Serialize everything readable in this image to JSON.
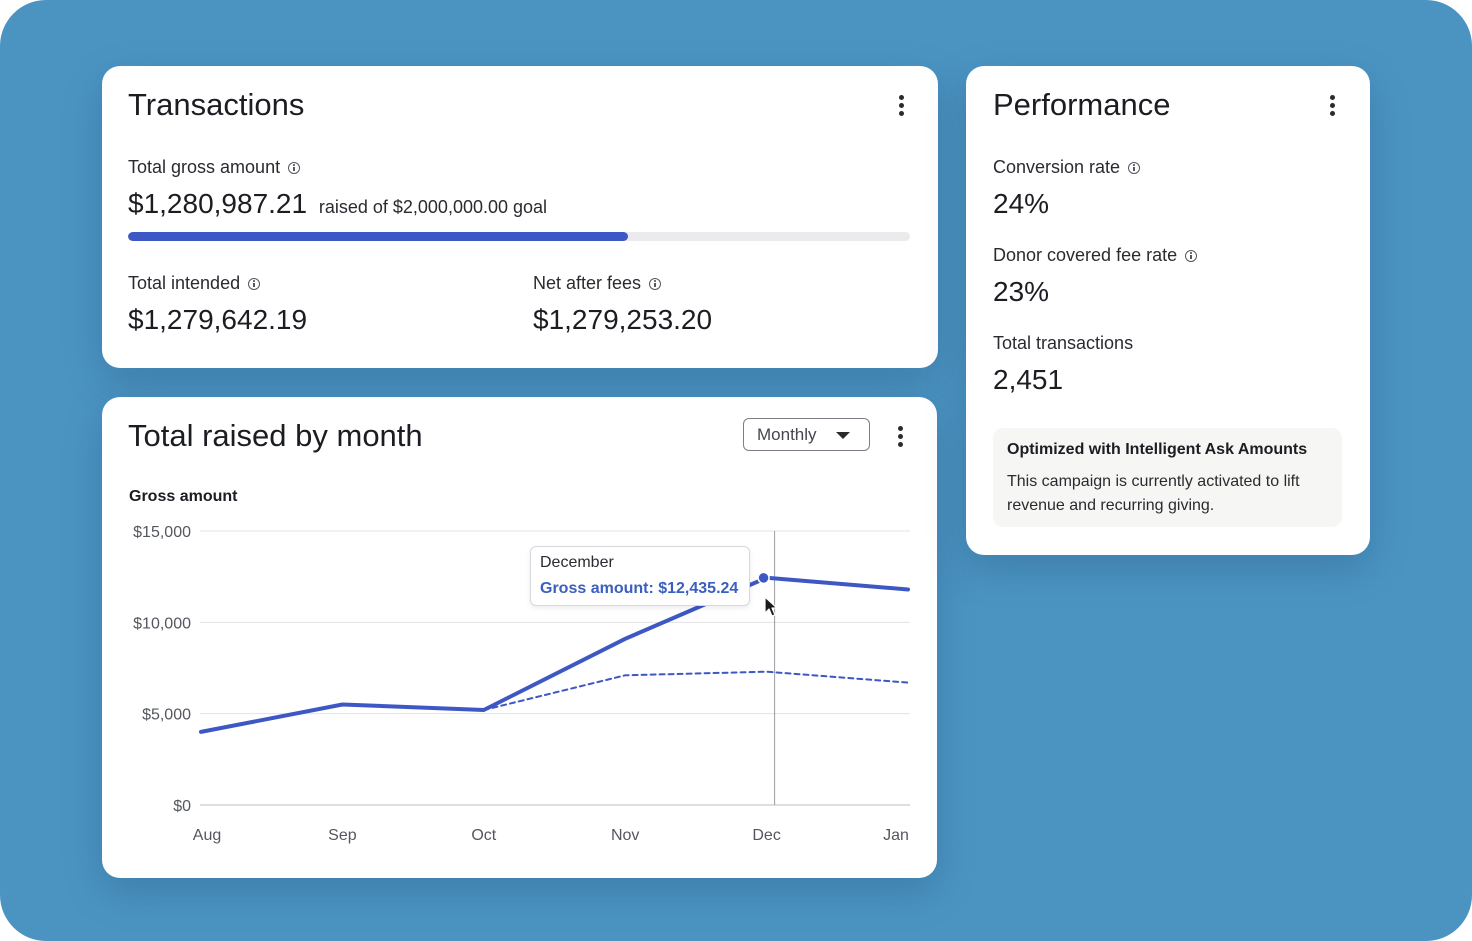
{
  "transactions": {
    "title": "Transactions",
    "total_gross_label": "Total gross amount",
    "total_gross_value": "$1,280,987.21",
    "goal_text": "raised of $2,000,000.00 goal",
    "goal_progress": 0.64,
    "total_intended_label": "Total intended",
    "total_intended_value": "$1,279,642.19",
    "net_after_fees_label": "Net after fees",
    "net_after_fees_value": "$1,279,253.20"
  },
  "performance": {
    "title": "Performance",
    "conversion_rate_label": "Conversion rate",
    "conversion_rate_value": "24%",
    "donor_fee_rate_label": "Donor covered fee rate",
    "donor_fee_rate_value": "23%",
    "total_transactions_label": "Total transactions",
    "total_transactions_value": "2,451",
    "notice_title": "Optimized with Intelligent Ask Amounts",
    "notice_text": "This campaign is currently activated to lift revenue and recurring giving."
  },
  "monthly": {
    "title": "Total raised by month",
    "period_select": "Monthly",
    "chart_label": "Gross amount",
    "tooltip_month": "December",
    "tooltip_value": "Gross amount: $12,435.24"
  },
  "colors": {
    "background": "#4b94c2",
    "accent": "#3d57c4",
    "tooltip_accent": "#3b5fc0"
  },
  "icons": [
    "kebab-menu-icon",
    "info-icon",
    "caret-down-icon",
    "mouse-pointer-icon"
  ],
  "chart_data": {
    "type": "line",
    "categories": [
      "Aug",
      "Sep",
      "Oct",
      "Nov",
      "Dec",
      "Jan"
    ],
    "series": [
      {
        "style": "solid",
        "values": [
          4000,
          5500,
          5200,
          9100,
          12435.24,
          11800
        ]
      },
      {
        "style": "dashed",
        "values": [
          null,
          null,
          5200,
          7100,
          7300,
          6700
        ]
      }
    ],
    "ylabel": "Gross amount",
    "yticks": [
      "$0",
      "$5,000",
      "$10,000",
      "$15,000"
    ],
    "ytick_values": [
      0,
      5000,
      10000,
      15000
    ],
    "ylim": [
      0,
      15000
    ],
    "grid": true,
    "highlight_category": "Dec",
    "legend": "none"
  }
}
